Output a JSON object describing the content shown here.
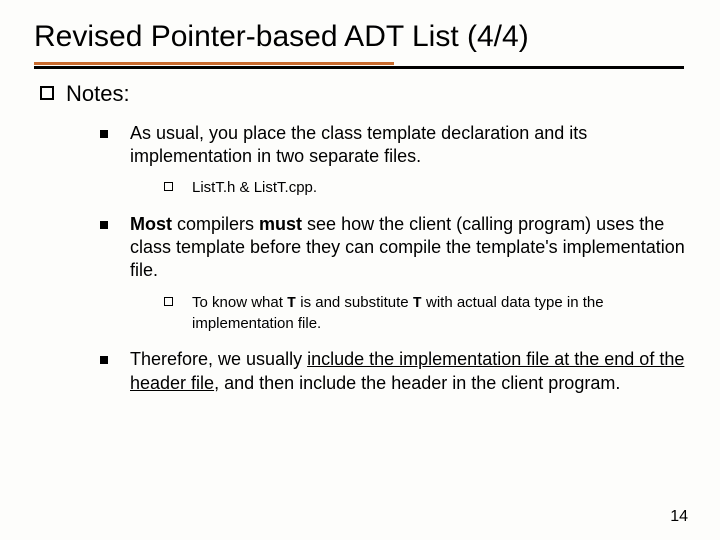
{
  "title": "Revised Pointer-based ADT List (4/4)",
  "rule": {
    "top_color": "#c96b2e",
    "bottom_color": "#000000"
  },
  "notes_label": "Notes:",
  "b1": {
    "text": "As usual, you place the class template declaration and its implementation in two separate files.",
    "sub": "ListT.h & ListT.cpp."
  },
  "b2": {
    "pre": "Most",
    "mid1": " compilers ",
    "must": "must",
    "mid2": " see how the client (calling program) uses the class template before they can compile the template's implementation file.",
    "sub_pre": "To know what ",
    "sub_T1": "T",
    "sub_mid": " is and substitute ",
    "sub_T2": "T",
    "sub_post": " with actual data type in the implementation file."
  },
  "b3": {
    "pre": "Therefore, we usually ",
    "ul": "include the implementation file at the end of the header file",
    "post": ", and then include the header in the client program."
  },
  "page_number": "14"
}
